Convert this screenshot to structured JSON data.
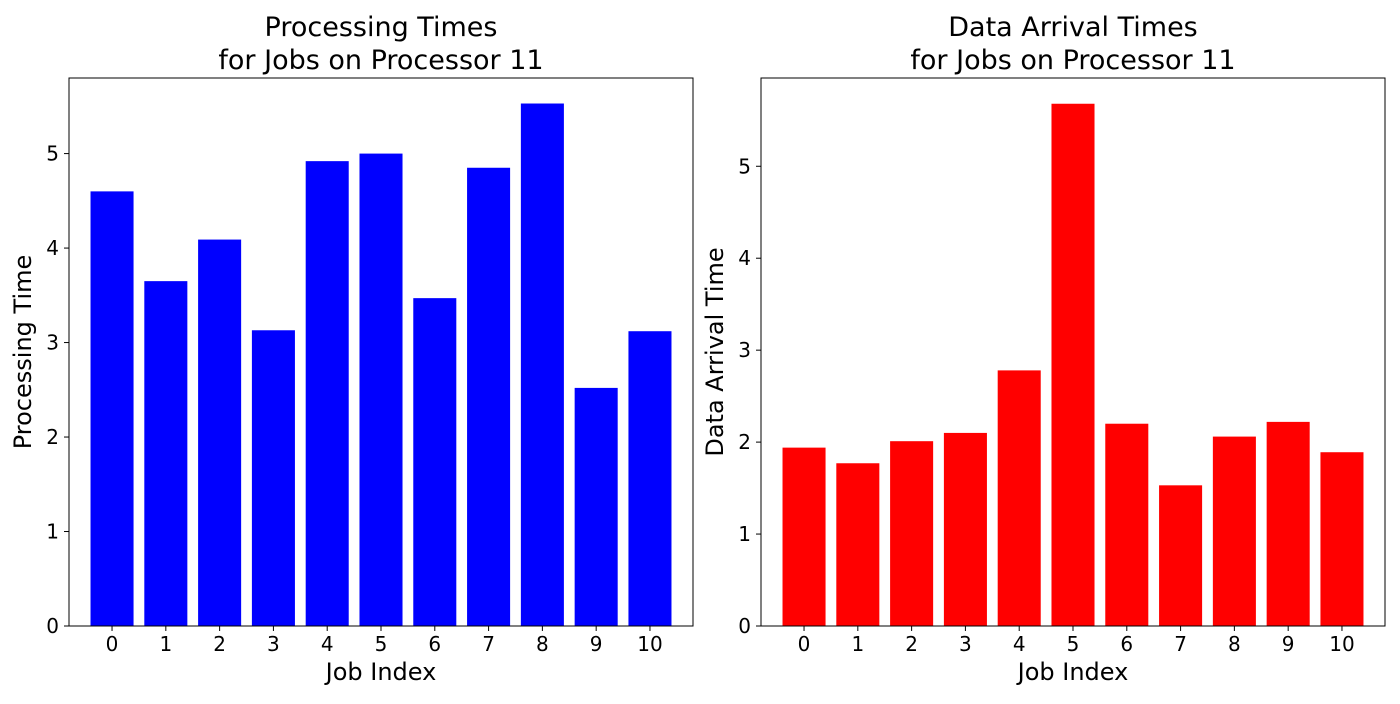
{
  "chart_data": [
    {
      "type": "bar",
      "title_lines": [
        "Processing Times",
        "for Jobs on Processor 11"
      ],
      "xlabel": "Job Index",
      "ylabel": "Processing Time",
      "categories": [
        "0",
        "1",
        "2",
        "3",
        "4",
        "5",
        "6",
        "7",
        "8",
        "9",
        "10"
      ],
      "values": [
        4.6,
        3.65,
        4.09,
        3.13,
        4.92,
        5.0,
        3.47,
        4.85,
        5.53,
        2.52,
        3.12
      ],
      "color": "#0000ff",
      "ylim": [
        0,
        5.8
      ],
      "yticks": [
        0,
        1,
        2,
        3,
        4,
        5
      ],
      "grid": false
    },
    {
      "type": "bar",
      "title_lines": [
        "Data Arrival Times",
        "for Jobs on Processor 11"
      ],
      "xlabel": "Job Index",
      "ylabel": "Data Arrival Time",
      "categories": [
        "0",
        "1",
        "2",
        "3",
        "4",
        "5",
        "6",
        "7",
        "8",
        "9",
        "10"
      ],
      "values": [
        1.94,
        1.77,
        2.01,
        2.1,
        2.78,
        5.68,
        2.2,
        1.53,
        2.06,
        2.22,
        1.89
      ],
      "color": "#ff0000",
      "ylim": [
        0,
        5.96
      ],
      "yticks": [
        0,
        1,
        2,
        3,
        4,
        5
      ],
      "grid": false
    }
  ]
}
